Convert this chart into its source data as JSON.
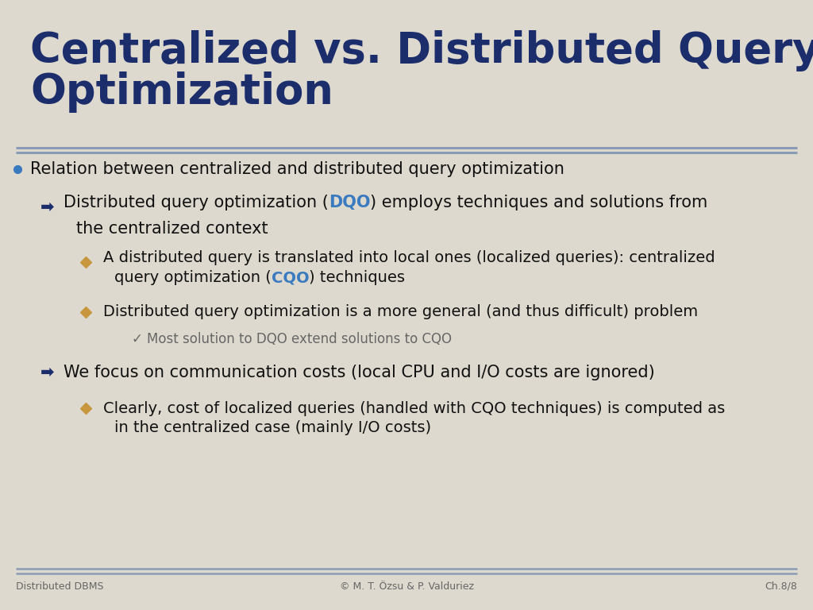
{
  "title_line1": "Centralized vs. Distributed Query",
  "title_line2": "Optimization",
  "title_color": "#1c2d6b",
  "background_color": "#ddd9ce",
  "footer_left": "Distributed DBMS",
  "footer_center": "© M. T. Özsu & P. Valduriez",
  "footer_right": "Ch.8/8",
  "footer_color": "#666666",
  "separator_color": "#8a9bb5",
  "bullet_color": "#3a7abf",
  "arrow_color": "#1c2d6b",
  "diamond_color": "#c8963c",
  "check_color": "#666666",
  "text_color": "#111111",
  "accent_color": "#3a7abf",
  "title_fontsize": 38,
  "body_fontsize": 15,
  "sub1_fontsize": 15,
  "sub2_fontsize": 14,
  "sub3_fontsize": 12,
  "footer_fontsize": 9
}
